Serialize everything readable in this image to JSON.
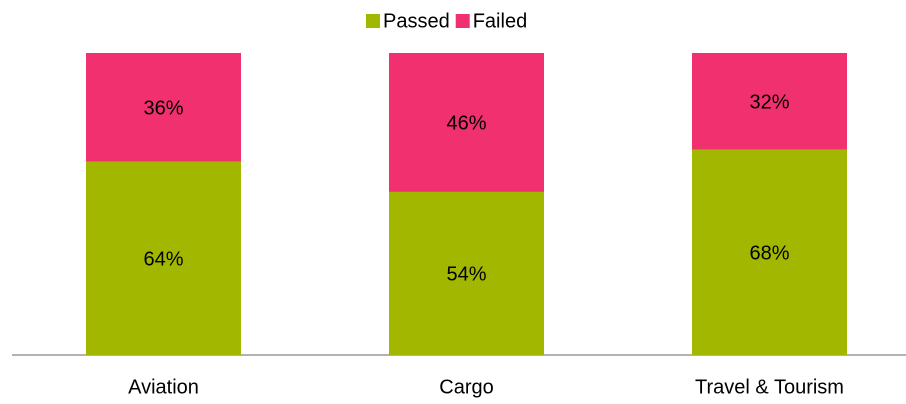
{
  "chart_data": {
    "type": "stacked_bar",
    "categories": [
      "Aviation",
      "Cargo",
      "Travel & Tourism"
    ],
    "series": [
      {
        "name": "Passed",
        "color": "#a2b800",
        "values": [
          64,
          54,
          68
        ],
        "value_labels": [
          "64%",
          "54%",
          "68%"
        ]
      },
      {
        "name": "Failed",
        "color": "#f0306f",
        "values": [
          36,
          46,
          32
        ],
        "value_labels": [
          "36%",
          "46%",
          "32%"
        ]
      }
    ],
    "ylim": [
      0,
      100
    ],
    "legend": "top"
  }
}
